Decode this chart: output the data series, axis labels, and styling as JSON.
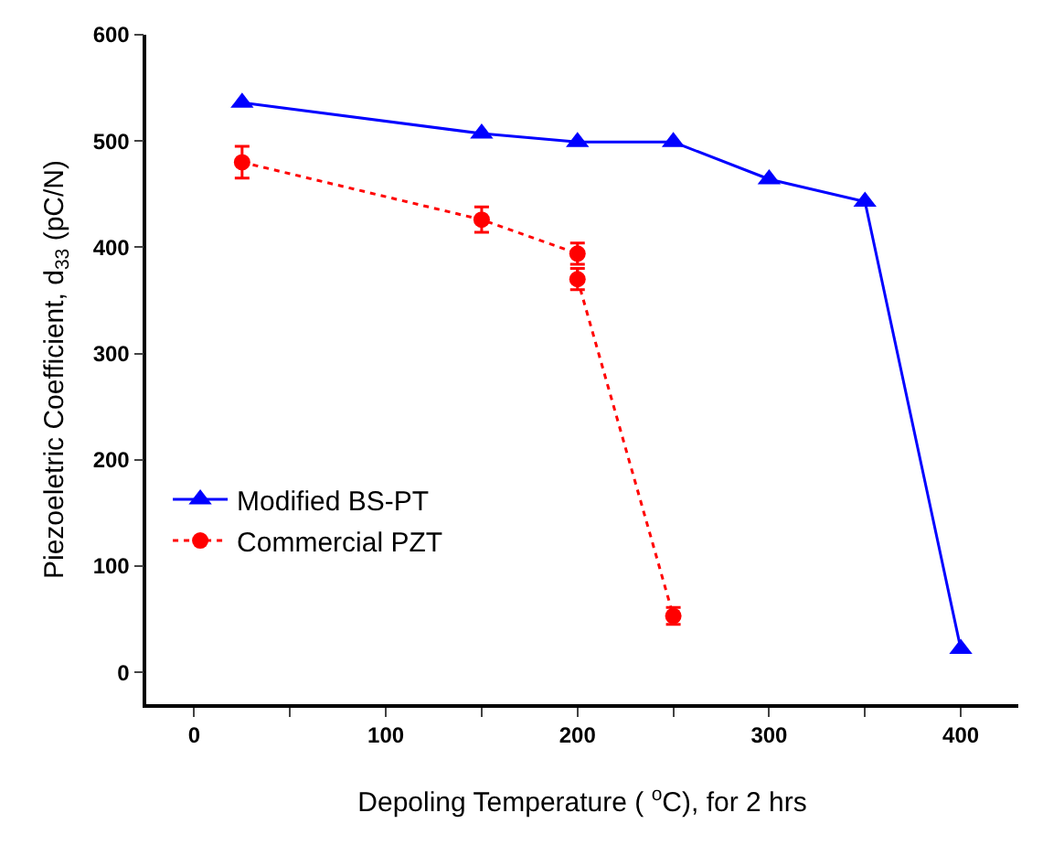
{
  "chart_data": {
    "type": "line",
    "xlabel": "Depoling Temperature ( $^{o}$C), for 2 hrs",
    "ylabel": "Piezoeletric Coefficient, d$_{33}$ (pC/N)",
    "xlim": [
      -25,
      430
    ],
    "ylim": [
      -30,
      600
    ],
    "xticks": [
      0,
      {
        "value": 50,
        "label": null
      },
      100,
      {
        "value": 150,
        "label": null
      },
      200,
      {
        "value": 250,
        "label": null
      },
      300,
      {
        "value": 350,
        "label": null
      },
      400
    ],
    "yticks": [
      0,
      100,
      200,
      300,
      400,
      500,
      600
    ],
    "grid": false,
    "legend": "bottom left",
    "series": [
      {
        "name": "Modified BS-PT",
        "color": "#0000ff",
        "marker": "triangle",
        "line_style": "solid",
        "x": [
          25,
          150,
          200,
          250,
          300,
          350,
          400
        ],
        "values": [
          536,
          507,
          499,
          499,
          464,
          443,
          22
        ]
      },
      {
        "name": "Commercial PZT",
        "color": "#ff0000",
        "marker": "circle",
        "line_style": "dotted",
        "x": [
          25,
          150,
          200,
          200,
          250
        ],
        "values": [
          480,
          426,
          394,
          370,
          53
        ],
        "errors": [
          15,
          12,
          10,
          10,
          8
        ]
      }
    ]
  }
}
